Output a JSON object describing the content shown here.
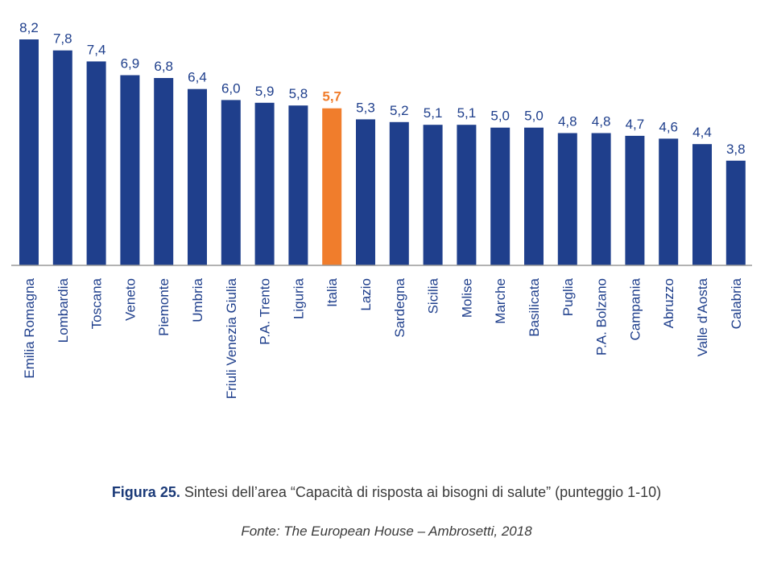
{
  "chart_data": {
    "type": "bar",
    "categories": [
      "Emilia Romagna",
      "Lombardia",
      "Toscana",
      "Veneto",
      "Piemonte",
      "Umbria",
      "Friuli Venezia Giulia",
      "P.A. Trento",
      "Liguria",
      "Italia",
      "Lazio",
      "Sardegna",
      "Sicilia",
      "Molise",
      "Marche",
      "Basilicata",
      "Puglia",
      "P.A. Bolzano",
      "Campania",
      "Abruzzo",
      "Valle d'Aosta",
      "Calabria"
    ],
    "values": [
      8.2,
      7.8,
      7.4,
      6.9,
      6.8,
      6.4,
      6.0,
      5.9,
      5.8,
      5.7,
      5.3,
      5.2,
      5.1,
      5.1,
      5.0,
      5.0,
      4.8,
      4.8,
      4.7,
      4.6,
      4.4,
      3.8
    ],
    "value_labels": [
      "8,2",
      "7,8",
      "7,4",
      "6,9",
      "6,8",
      "6,4",
      "6,0",
      "5,9",
      "5,8",
      "5,7",
      "5,3",
      "5,2",
      "5,1",
      "5,1",
      "5,0",
      "5,0",
      "4,8",
      "4,8",
      "4,7",
      "4,6",
      "4,4",
      "3,8"
    ],
    "highlight_category": "Italia",
    "ylim": [
      0,
      8.2
    ],
    "grid": false,
    "colors": {
      "bar": "#1f3f8c",
      "highlight": "#f07d2c",
      "label": "#1f3f8c",
      "axis": "#999999"
    }
  },
  "caption": {
    "figure_label": "Figura 25.",
    "text": " Sintesi dell’area “Capacità di risposta ai bisogni di salute” (punteggio 1-10)",
    "source": "Fonte: The European House – Ambrosetti, 2018"
  }
}
